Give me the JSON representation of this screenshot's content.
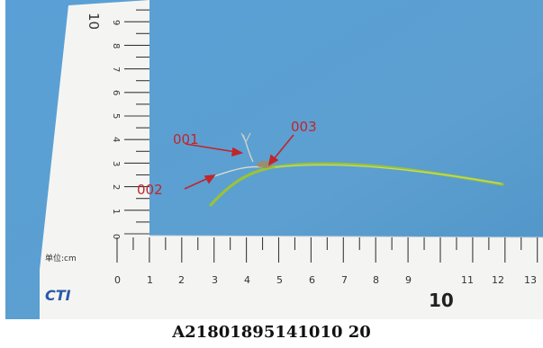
{
  "colors": {
    "background": "#5b9fd2",
    "ruler": "#f4f5f4",
    "tick": "#3a3a3a",
    "callout": "#c0262b",
    "stem": "#9cc23a",
    "root": "#d8dcc8"
  },
  "ruler": {
    "unit_label": "单位:cm",
    "brand": "CTI",
    "big_mark": "10",
    "horizontal_labels": [
      "0",
      "1",
      "2",
      "3",
      "4",
      "5",
      "6",
      "7",
      "8",
      "9",
      "11",
      "12",
      "13"
    ],
    "vertical_labels": [
      "0",
      "1",
      "2",
      "3",
      "4",
      "5",
      "6",
      "7",
      "8",
      "9",
      "10"
    ]
  },
  "callouts": {
    "c001": "001",
    "c002": "002",
    "c003": "003"
  },
  "caption": "A21801895141010 20"
}
